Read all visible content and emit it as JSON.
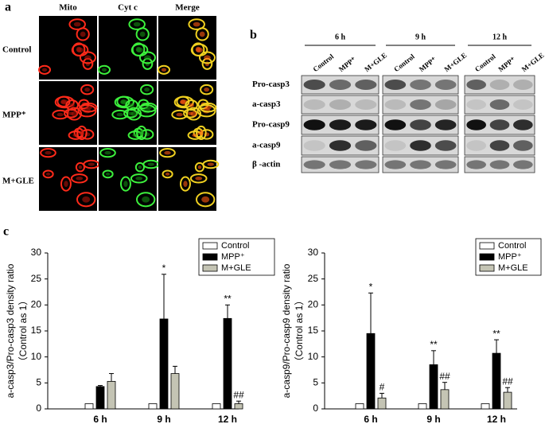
{
  "panel_a": {
    "label": "a",
    "columns": [
      "Mito",
      "Cyt c",
      "Merge"
    ],
    "rows": [
      "Control",
      "MPP⁺",
      "M+GLE"
    ]
  },
  "panel_b": {
    "label": "b",
    "times": [
      "6 h",
      "9 h",
      "12 h"
    ],
    "lanes": [
      "Control",
      "MPP⁺",
      "M+GLE"
    ],
    "rows": [
      "Pro-casp3",
      "a-casp3",
      "Pro-casp9",
      "a-casp9",
      "β -actin"
    ]
  },
  "panel_c": {
    "label": "c"
  },
  "chart_data": [
    {
      "type": "bar",
      "ylabel_lines": [
        "a-casp3/Pro-casp3 density ratio",
        "（Control as 1）"
      ],
      "categories": [
        "6 h",
        "9 h",
        "12 h"
      ],
      "ylim": [
        0,
        30
      ],
      "yticks": [
        0,
        5,
        10,
        15,
        20,
        25,
        30
      ],
      "series": [
        {
          "name": "Control",
          "color": "#ffffff",
          "values": [
            1,
            1,
            1
          ],
          "errors": [
            0,
            0,
            0
          ],
          "annotations": [
            null,
            null,
            null
          ]
        },
        {
          "name": "MPP⁺",
          "color": "#000000",
          "values": [
            4.3,
            17.3,
            17.4
          ],
          "errors": [
            0.2,
            8.6,
            2.6
          ],
          "annotations": [
            null,
            "*",
            "**"
          ]
        },
        {
          "name": "M+GLE",
          "color": "#c4c4b4",
          "values": [
            5.3,
            6.8,
            1.0
          ],
          "errors": [
            1.5,
            1.4,
            0.5
          ],
          "annotations": [
            null,
            null,
            "##"
          ]
        }
      ]
    },
    {
      "type": "bar",
      "ylabel_lines": [
        "a-casp9/Pro-casp9 density ratio",
        "（Control as 1）"
      ],
      "categories": [
        "6 h",
        "9 h",
        "12 h"
      ],
      "ylim": [
        0,
        30
      ],
      "yticks": [
        0,
        5,
        10,
        15,
        20,
        25,
        30
      ],
      "series": [
        {
          "name": "Control",
          "color": "#ffffff",
          "values": [
            1,
            1,
            1
          ],
          "errors": [
            0,
            0,
            0
          ],
          "annotations": [
            null,
            null,
            null
          ]
        },
        {
          "name": "MPP⁺",
          "color": "#000000",
          "values": [
            14.5,
            8.5,
            10.7
          ],
          "errors": [
            7.8,
            2.7,
            2.6
          ],
          "annotations": [
            "*",
            "**",
            "**"
          ]
        },
        {
          "name": "M+GLE",
          "color": "#c4c4b4",
          "values": [
            2.1,
            3.7,
            3.2
          ],
          "errors": [
            0.9,
            1.4,
            0.9
          ],
          "annotations": [
            "#",
            "##",
            "##"
          ]
        }
      ]
    }
  ]
}
